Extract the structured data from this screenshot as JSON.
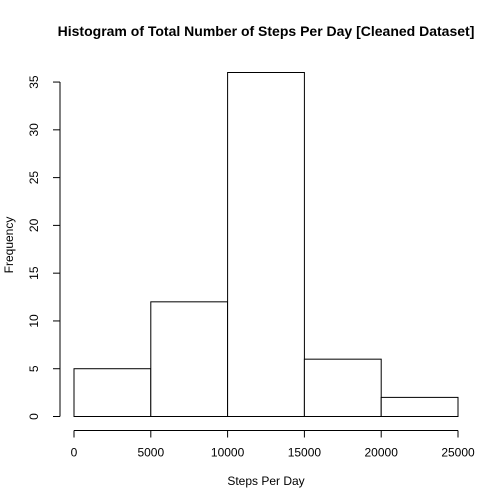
{
  "chart_data": {
    "type": "bar",
    "title": "Histogram of Total Number of Steps Per Day [Cleaned Dataset]",
    "xlabel": "Steps Per Day",
    "ylabel": "Frequency",
    "bins": [
      {
        "from": 0,
        "to": 5000,
        "value": 5
      },
      {
        "from": 5000,
        "to": 10000,
        "value": 12
      },
      {
        "from": 10000,
        "to": 15000,
        "value": 36
      },
      {
        "from": 15000,
        "to": 20000,
        "value": 6
      },
      {
        "from": 20000,
        "to": 25000,
        "value": 2
      }
    ],
    "x_ticks": [
      "0",
      "5000",
      "10000",
      "15000",
      "20000",
      "25000"
    ],
    "y_ticks": [
      "0",
      "5",
      "10",
      "15",
      "20",
      "25",
      "30",
      "35"
    ],
    "xlim": [
      0,
      25000
    ],
    "ylim": [
      0,
      36
    ],
    "grid": false,
    "legend": "none",
    "colors": {
      "bar_fill": "#ffffff",
      "bar_stroke": "#000000"
    }
  }
}
